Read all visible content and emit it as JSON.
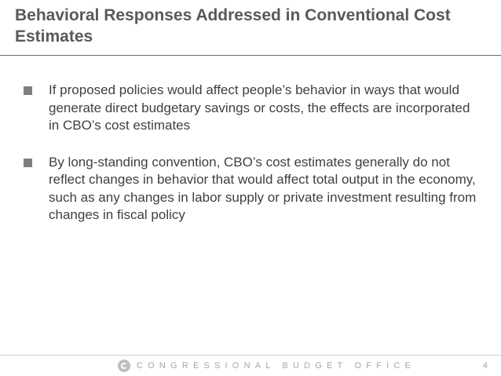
{
  "slide": {
    "title": "Behavioral Responses Addressed in Conventional Cost Estimates",
    "bullets": [
      "If proposed policies would affect people’s behavior in ways that would generate direct budgetary savings or costs, the effects are incorporated in CBO’s cost estimates",
      "By long-standing convention, CBO’s cost estimates generally do not reflect changes in behavior that would affect total output in the economy, such as any changes in labor supply or private investment resulting from changes in fiscal policy"
    ]
  },
  "footer": {
    "organization": "CONGRESSIONAL BUDGET OFFICE",
    "page_number": "4",
    "logo_icon": "cbo-logo-icon"
  },
  "colors": {
    "title": "#595959",
    "body_text": "#3f3f3f",
    "bullet_marker": "#7f7f7f",
    "footer_text": "#a6a6a6",
    "rule": "#6a6a6a"
  }
}
